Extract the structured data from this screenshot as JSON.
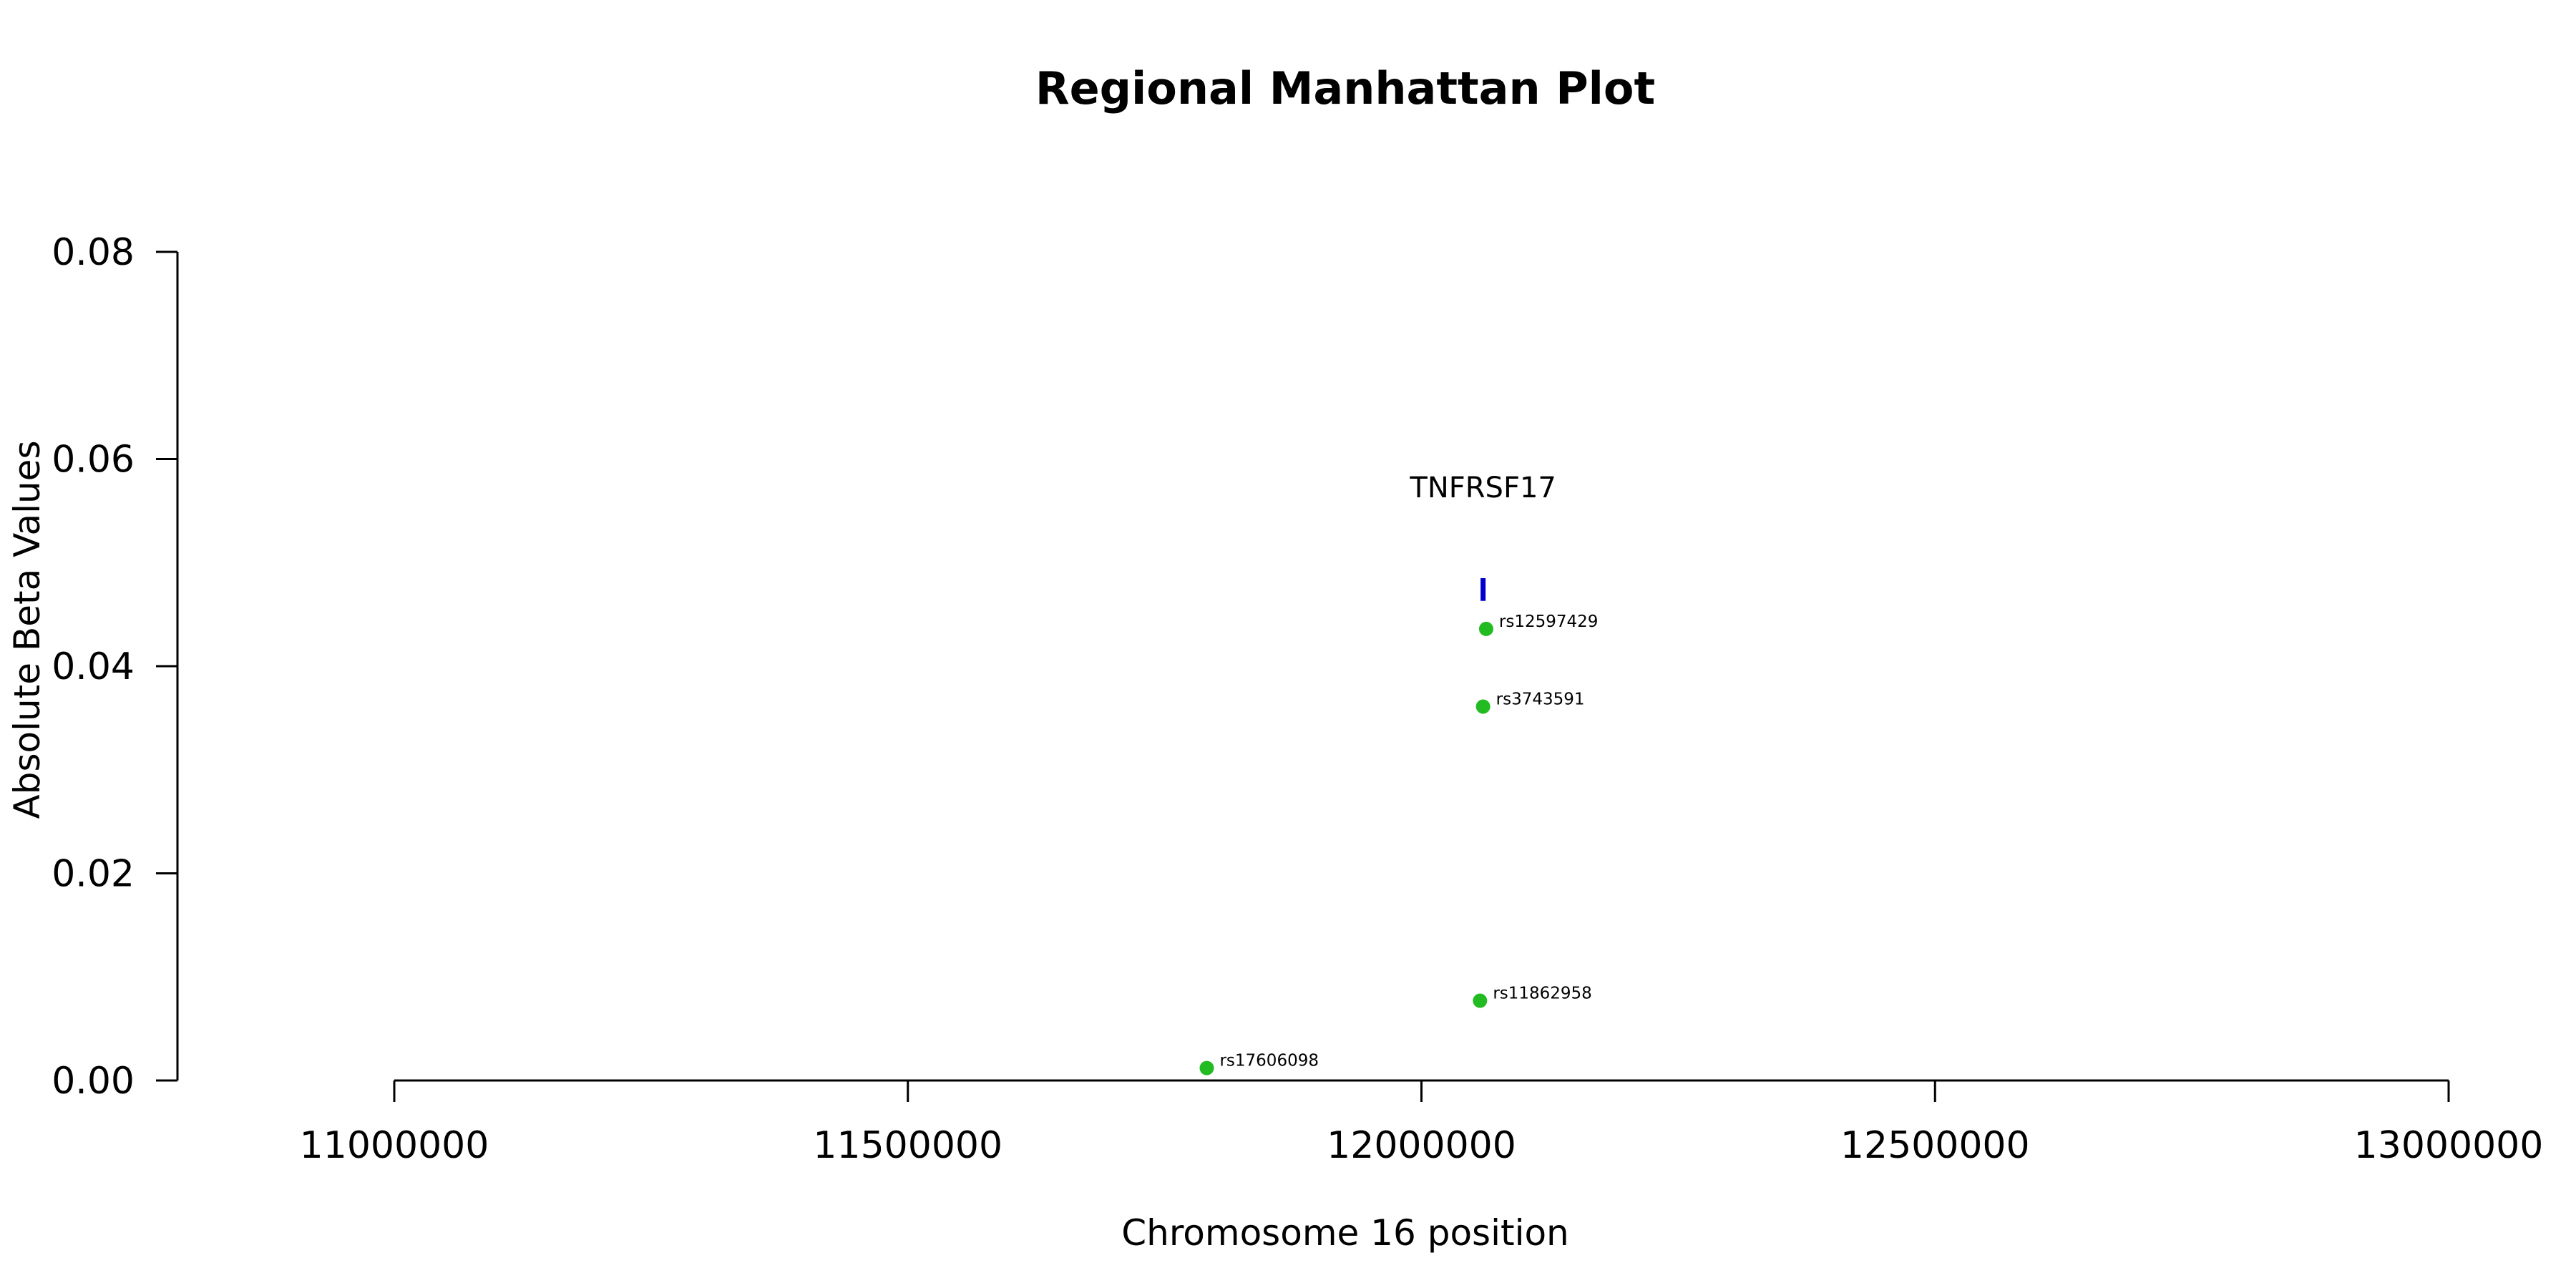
{
  "chart_data": {
    "type": "scatter",
    "title": "Regional Manhattan Plot",
    "xlabel": "Chromosome 16 position",
    "ylabel": "Absolute Beta Values",
    "xlim": [
      11000000,
      13000000
    ],
    "ylim": [
      0,
      0.08
    ],
    "x_ticks": [
      11000000,
      11500000,
      12000000,
      12500000,
      13000000
    ],
    "y_ticks": [
      "0.00",
      "0.02",
      "0.04",
      "0.06",
      "0.08"
    ],
    "y_tick_values": [
      0,
      0.02,
      0.04,
      0.06,
      0.08
    ],
    "grid": false,
    "point_color": "#22bb22",
    "points": [
      {
        "label": "rs12597429",
        "x": 12063000,
        "y": 0.0436
      },
      {
        "label": "rs3743591",
        "x": 12060000,
        "y": 0.0361
      },
      {
        "label": "rs11862958",
        "x": 12057000,
        "y": 0.0077
      },
      {
        "label": "rs17606098",
        "x": 11791000,
        "y": 0.0012
      }
    ],
    "gene_marker": {
      "label": "TNFRSF17",
      "x": 12060000,
      "y_range": [
        0.0463,
        0.0485
      ],
      "color": "#0000cc"
    }
  }
}
